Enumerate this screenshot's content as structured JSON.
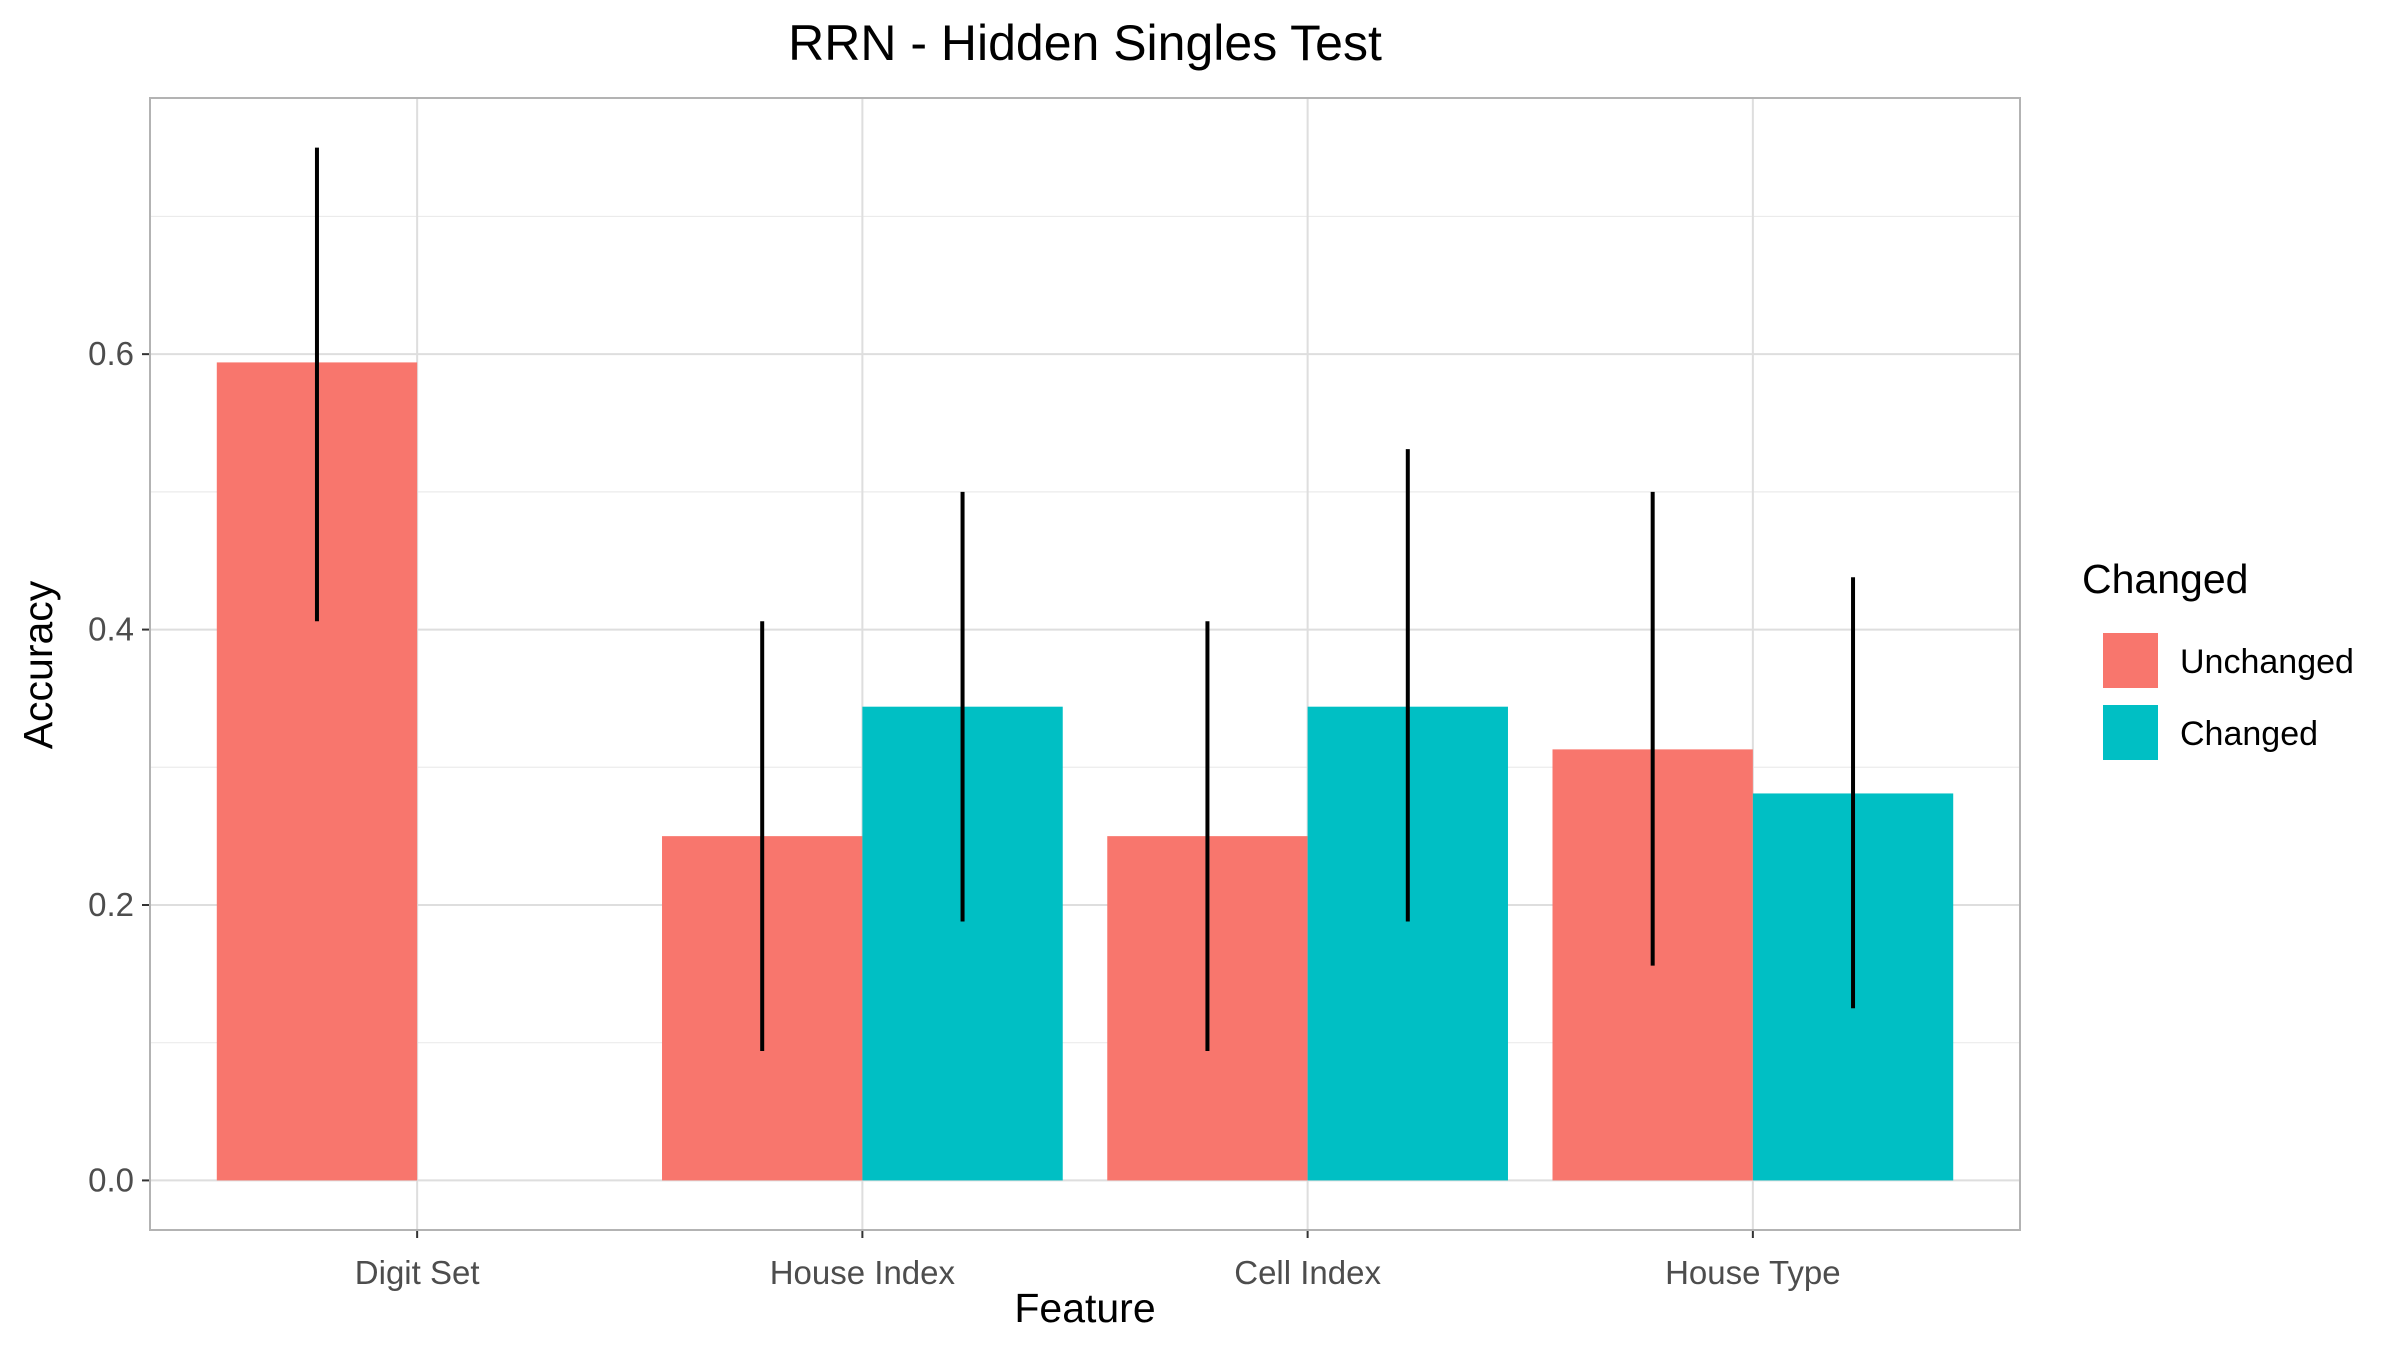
{
  "chart_data": {
    "type": "bar",
    "title": "RRN - Hidden Singles Test",
    "xlabel": "Feature",
    "ylabel": "Accuracy",
    "ylim": [
      -0.036,
      0.786
    ],
    "yticks": [
      0.0,
      0.2,
      0.4,
      0.6
    ],
    "ytick_labels": [
      "0.0",
      "0.2",
      "0.4",
      "0.6"
    ],
    "categories": [
      "Digit Set",
      "House Index",
      "Cell Index",
      "House Type"
    ],
    "grid": true,
    "legend": {
      "title": "Changed",
      "placement": "right"
    },
    "series": [
      {
        "name": "Unchanged",
        "color": "#F8766D",
        "values": [
          0.594,
          0.25,
          0.25,
          0.313
        ],
        "error_low": [
          0.406,
          0.094,
          0.094,
          0.156
        ],
        "error_high": [
          0.75,
          0.406,
          0.406,
          0.5
        ]
      },
      {
        "name": "Changed",
        "color": "#00BFC4",
        "values": [
          null,
          0.344,
          0.344,
          0.281
        ],
        "error_low": [
          null,
          0.188,
          0.188,
          0.125
        ],
        "error_high": [
          null,
          0.5,
          0.531,
          0.438
        ]
      }
    ]
  }
}
